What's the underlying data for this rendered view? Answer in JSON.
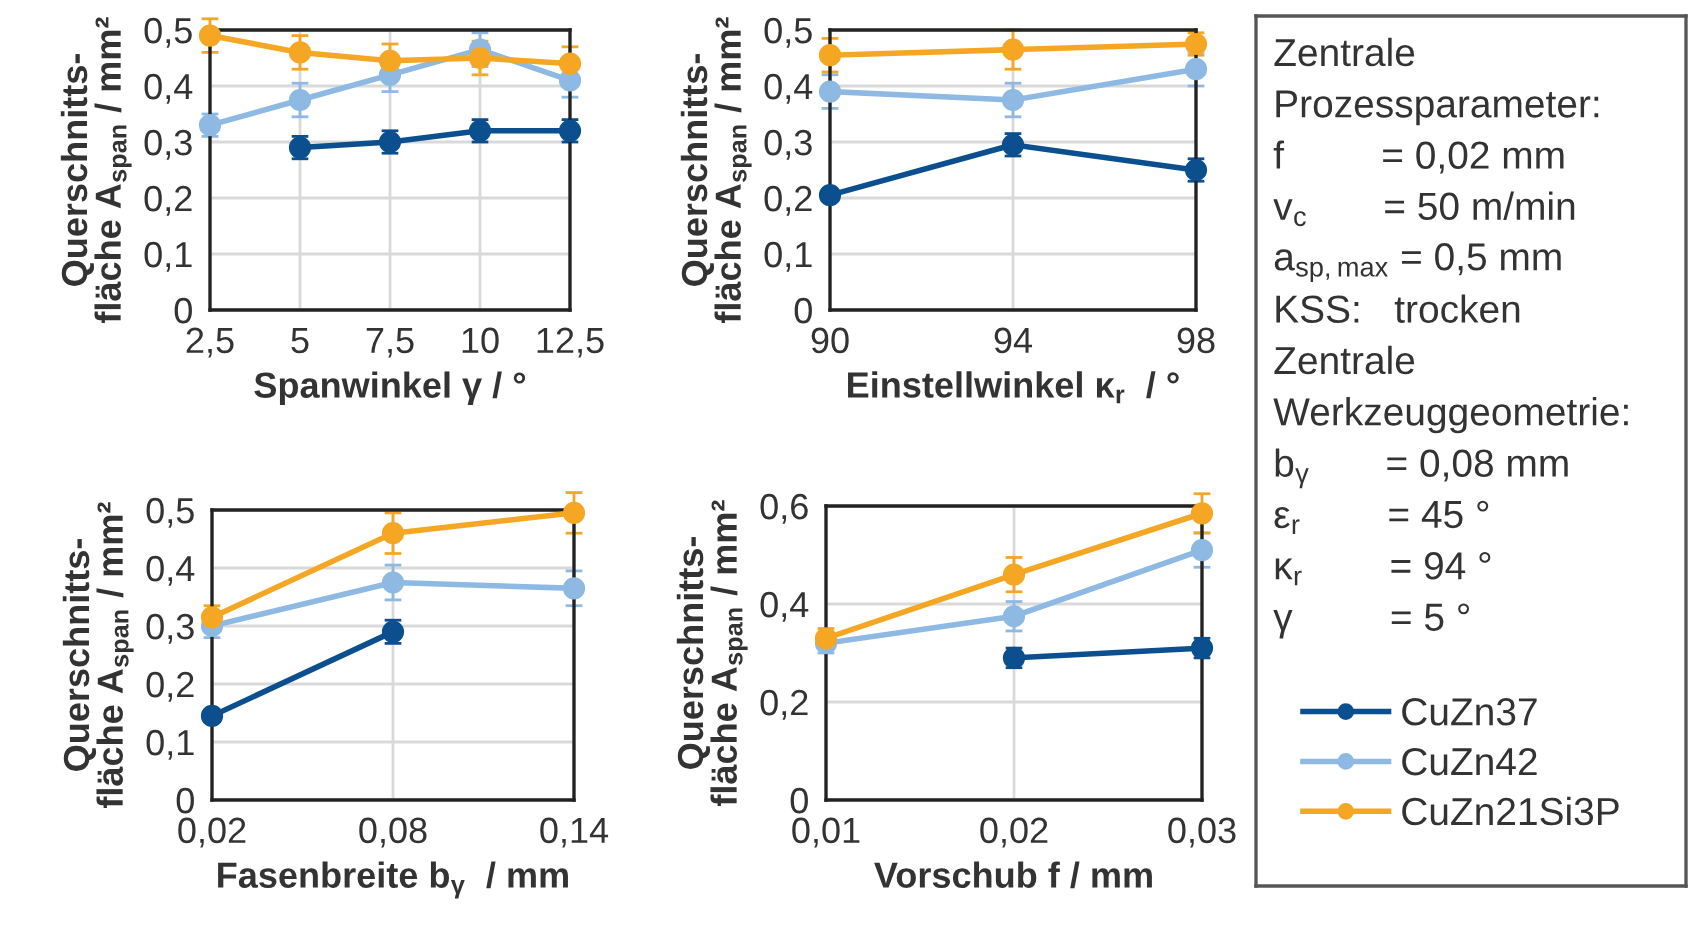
{
  "chart_data": [
    {
      "type": "line",
      "xlabel": "Spanwinkel γ / °",
      "ylabel": "Querschnitts-\nfläche A$_{span}$ / mm²",
      "x": [
        2.5,
        5,
        7.5,
        10,
        12.5
      ],
      "xlim": [
        2.5,
        12.5
      ],
      "xticks": [
        {
          "value": 2.5,
          "label": "2,5"
        },
        5,
        {
          "value": 7.5,
          "label": "7,5"
        },
        10,
        {
          "value": 12.5,
          "label": "12,5"
        }
      ],
      "ylim": [
        0,
        0.5
      ],
      "yticks": [
        0,
        {
          "value": 0.1,
          "label": "0,1"
        },
        {
          "value": 0.2,
          "label": "0,2"
        },
        {
          "value": 0.3,
          "label": "0,3"
        },
        {
          "value": 0.4,
          "label": "0,4"
        },
        {
          "value": 0.5,
          "label": "0,5"
        }
      ],
      "grid": true,
      "marker": "circle",
      "line_style": "solid",
      "legend": "right",
      "series": [
        {
          "name": "CuZn37",
          "color": "#0b4f8f",
          "values": [
            null,
            0.29,
            0.3,
            0.32,
            0.32
          ],
          "errors": [
            null,
            0.02,
            0.02,
            0.02,
            0.02
          ]
        },
        {
          "name": "CuZn42",
          "color": "#8db9e3",
          "values": [
            0.33,
            0.375,
            0.42,
            0.465,
            0.41
          ],
          "errors": [
            0.02,
            0.03,
            0.03,
            0.03,
            0.03
          ]
        },
        {
          "name": "CuZn21Si3P",
          "color": "#f5a623",
          "values": [
            0.49,
            0.46,
            0.445,
            0.45,
            0.44
          ],
          "errors": [
            0.03,
            0.03,
            0.03,
            0.03,
            0.03
          ]
        }
      ]
    },
    {
      "type": "line",
      "xlabel": "Einstellwinkel κ$_{r}$  / °",
      "ylabel": "Querschnitts-\nfläche A$_{span}$ / mm²",
      "x": [
        90,
        94,
        98
      ],
      "xlim": [
        90,
        98
      ],
      "xticks": [
        90,
        94,
        98
      ],
      "ylim": [
        0,
        0.5
      ],
      "yticks": [
        0,
        {
          "value": 0.1,
          "label": "0,1"
        },
        {
          "value": 0.2,
          "label": "0,2"
        },
        {
          "value": 0.3,
          "label": "0,3"
        },
        {
          "value": 0.4,
          "label": "0,4"
        },
        {
          "value": 0.5,
          "label": "0,5"
        }
      ],
      "grid": true,
      "marker": "circle",
      "line_style": "solid",
      "series": [
        {
          "color": "#0b4f8f",
          "values": [
            0.205,
            0.295,
            0.25
          ],
          "errors": [
            0.01,
            0.02,
            0.02
          ]
        },
        {
          "color": "#8db9e3",
          "values": [
            0.39,
            0.375,
            0.43
          ],
          "errors": [
            0.03,
            0.03,
            0.03
          ]
        },
        {
          "color": "#f5a623",
          "values": [
            0.455,
            0.465,
            0.475
          ],
          "errors": [
            0.03,
            0.035,
            0.02
          ]
        }
      ]
    },
    {
      "type": "line",
      "xlabel": "Fasenbreite b$_{γ}$  / mm",
      "ylabel": "Querschnitts-\nfläche A$_{span}$ / mm²",
      "x": [
        0.02,
        0.08,
        0.14
      ],
      "xlim": [
        0.02,
        0.14
      ],
      "xticks": [
        {
          "value": 0.02,
          "label": "0,02"
        },
        {
          "value": 0.08,
          "label": "0,08"
        },
        {
          "value": 0.14,
          "label": "0,14"
        }
      ],
      "ylim": [
        0,
        0.5
      ],
      "yticks": [
        0,
        {
          "value": 0.1,
          "label": "0,1"
        },
        {
          "value": 0.2,
          "label": "0,2"
        },
        {
          "value": 0.3,
          "label": "0,3"
        },
        {
          "value": 0.4,
          "label": "0,4"
        },
        {
          "value": 0.5,
          "label": "0,5"
        }
      ],
      "grid": true,
      "marker": "circle",
      "line_style": "solid",
      "series": [
        {
          "color": "#0b4f8f",
          "values": [
            0.145,
            0.29,
            null
          ],
          "errors": [
            0.01,
            0.02,
            null
          ]
        },
        {
          "color": "#8db9e3",
          "values": [
            0.3,
            0.375,
            0.365
          ],
          "errors": [
            0.02,
            0.03,
            0.03
          ]
        },
        {
          "color": "#f5a623",
          "values": [
            0.315,
            0.46,
            0.495
          ],
          "errors": [
            0.02,
            0.035,
            0.035
          ]
        }
      ]
    },
    {
      "type": "line",
      "xlabel": "Vorschub f / mm",
      "ylabel": "Querschnitts-\nfläche A$_{span}$ / mm²",
      "x": [
        0.01,
        0.02,
        0.03
      ],
      "xlim": [
        0.01,
        0.03
      ],
      "xticks": [
        {
          "value": 0.01,
          "label": "0,01"
        },
        {
          "value": 0.02,
          "label": "0,02"
        },
        {
          "value": 0.03,
          "label": "0,03"
        }
      ],
      "ylim": [
        0,
        0.6
      ],
      "yticks": [
        0,
        {
          "value": 0.2,
          "label": "0,2"
        },
        {
          "value": 0.4,
          "label": "0,4"
        },
        {
          "value": 0.6,
          "label": "0,6"
        }
      ],
      "grid": true,
      "marker": "circle",
      "line_style": "solid",
      "series": [
        {
          "color": "#0b4f8f",
          "values": [
            null,
            0.29,
            0.31
          ],
          "errors": [
            null,
            0.02,
            0.02
          ]
        },
        {
          "color": "#8db9e3",
          "values": [
            0.32,
            0.375,
            0.51
          ],
          "errors": [
            0.02,
            0.03,
            0.035
          ]
        },
        {
          "color": "#f5a623",
          "values": [
            0.33,
            0.46,
            0.585
          ],
          "errors": [
            0.02,
            0.035,
            0.04
          ]
        }
      ]
    },
    {
      "type": "other",
      "annotations": [
        "Zentrale",
        "Prozessparameter:",
        "f         = 0,02 mm",
        "v$_{c}$       = 50 m/min",
        "a$_{sp,max}$ = 0,5 mm",
        "KSS:   trocken",
        "Zentrale",
        "Werkzeuggeometrie:",
        "b$_{γ}$       = 0,08 mm",
        "ε$_{r}$        = 45 °",
        "κ$_{r}$        = 94 °",
        "γ         = 5 °"
      ]
    }
  ]
}
